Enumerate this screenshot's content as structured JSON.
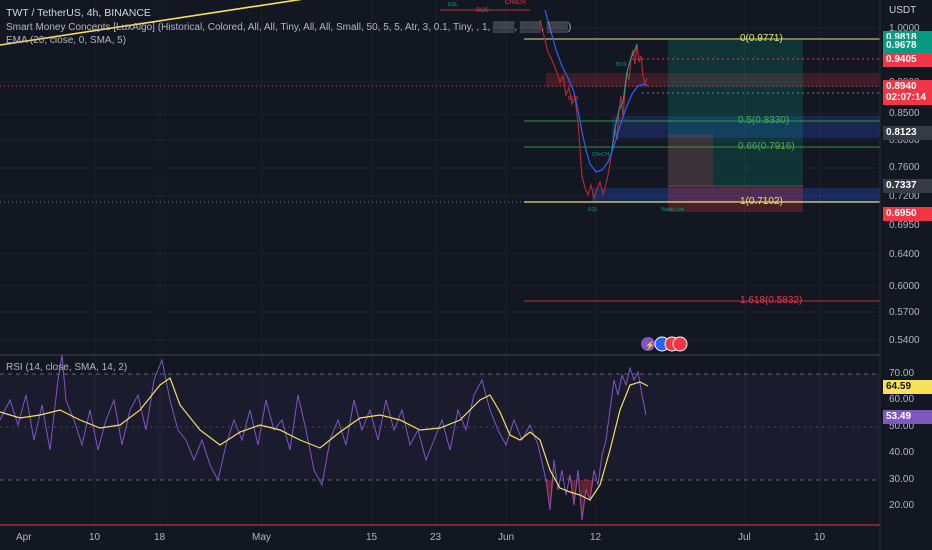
{
  "header": {
    "symbol": "TWT / TetherUS, 4h, BINANCE",
    "indicator1": "Smart Money Concepts [LuxAlgo] (Historical, Colored, All, All, Tiny, All, All, Small, 50, 5, 5, Atr, 3, 0.1, Tiny, , 1, ▒▒▒, ▒▒▒, ▒▒▒)",
    "indicator2": "EMA (20, close, 0, SMA, 5)",
    "rsi": "RSI (14, close, SMA, 14, 2)"
  },
  "price_axis": {
    "currency": "USDT",
    "ticks": [
      "1.0000",
      "0.9000",
      "0.8500",
      "0.8000",
      "0.7600",
      "0.7200",
      "0.6950",
      "0.6400",
      "0.6000",
      "0.5700",
      "0.5400"
    ],
    "tags": [
      {
        "value": "0.9818",
        "color": "#089981"
      },
      {
        "value": "0.9678",
        "color": "#089981"
      },
      {
        "value": "0.9405",
        "color": "#f23645"
      },
      {
        "value": "0.8940",
        "color": "#f23645"
      },
      {
        "value": "02:07:14",
        "color": "#f23645"
      },
      {
        "value": "0.8123",
        "color": "#363a45"
      },
      {
        "value": "0.7337",
        "color": "#363a45"
      },
      {
        "value": "0.6950",
        "color": "#f23645"
      }
    ]
  },
  "rsi_axis": {
    "ticks": [
      "70.00",
      "60.00",
      "50.00",
      "40.00",
      "30.00",
      "20.00"
    ],
    "tags": [
      {
        "value": "64.59",
        "color": "#f7e15b"
      },
      {
        "value": "53.49",
        "color": "#7e57c2"
      }
    ]
  },
  "fib_labels": [
    "0(0.9771)",
    "0.5(0.8330)",
    "0.66(0.7916)",
    "1(0.7102)",
    "1.618(0.5832)"
  ],
  "smc_labels": [
    "BOS",
    "CHoCH",
    "EQL",
    "BOS",
    "CHoCH",
    "BOS",
    "EQL",
    "Weak Low"
  ],
  "x_axis": [
    "Apr",
    "10",
    "18",
    "May",
    "15",
    "23",
    "Jun",
    "12",
    "Jul",
    "10"
  ],
  "colors": {
    "background": "#131722",
    "fib_yellow": "#e8e46c",
    "fib_green": "#4caf50",
    "fib_red": "#f23645",
    "rsi_line": "#7e57c2",
    "rsi_ma": "#f7e15b"
  }
}
